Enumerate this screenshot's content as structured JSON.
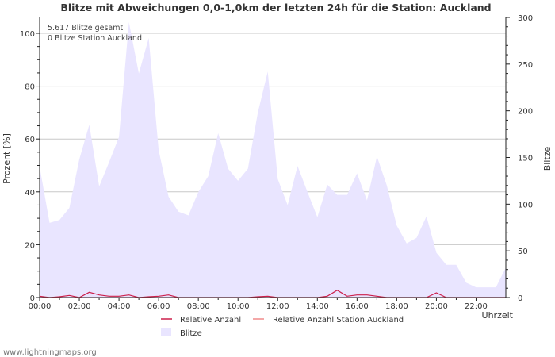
{
  "chart_data": {
    "type": "area",
    "title": "Blitze mit Abweichungen 0,0-1,0km der letzten 24h für die Station: Auckland",
    "xlabel": "Uhrzeit",
    "ylabel_left": "Prozent   [%]",
    "ylabel_right": "Blitze",
    "ylim_left": [
      0,
      106
    ],
    "ylim_right": [
      0,
      300
    ],
    "x_range_hours": [
      0,
      23.5
    ],
    "x_ticks": [
      "00:00",
      "02:00",
      "04:00",
      "06:00",
      "08:00",
      "10:00",
      "12:00",
      "14:00",
      "16:00",
      "18:00",
      "20:00",
      "22:00"
    ],
    "y_ticks_left": [
      "0",
      "20",
      "40",
      "60",
      "80",
      "100"
    ],
    "y_ticks_right": [
      "0",
      "50",
      "100",
      "150",
      "200",
      "250",
      "300"
    ],
    "annotation": [
      "5.617 Blitze gesamt",
      "0 Blitze Station Auckland"
    ],
    "legend": {
      "relative": "Relative Anzahl",
      "station": "Relative Anzahl Station Auckland",
      "blitze": "Blitze"
    },
    "series": [
      {
        "name": "Blitze",
        "axis": "right",
        "x": [
          0,
          0.5,
          1,
          1.5,
          2,
          2.5,
          3,
          3.5,
          4,
          4.5,
          5,
          5.5,
          6,
          6.5,
          7,
          7.5,
          8,
          8.5,
          9,
          9.5,
          10,
          10.5,
          11,
          11.5,
          12,
          12.5,
          13,
          13.5,
          14,
          14.5,
          15,
          15.5,
          16,
          16.5,
          17,
          17.5,
          18,
          18.5,
          19,
          19.5,
          20,
          20.5,
          21,
          21.5,
          22,
          22.5,
          23,
          23.5
        ],
        "values": [
          140,
          80,
          83,
          96,
          148,
          185,
          119,
          145,
          172,
          295,
          240,
          278,
          158,
          108,
          92,
          88,
          113,
          130,
          176,
          138,
          125,
          138,
          198,
          242,
          127,
          99,
          141,
          113,
          86,
          121,
          110,
          110,
          133,
          104,
          151,
          120,
          77,
          58,
          64,
          87,
          48,
          35,
          35,
          16,
          11,
          11,
          11,
          32
        ]
      },
      {
        "name": "Relative Anzahl",
        "axis": "left",
        "x": [
          0,
          0.5,
          1,
          1.5,
          2,
          2.5,
          3,
          3.5,
          4,
          4.5,
          5,
          5.5,
          6,
          6.5,
          7,
          7.5,
          8,
          8.5,
          9,
          9.5,
          10,
          10.5,
          11,
          11.5,
          12,
          12.5,
          13,
          13.5,
          14,
          14.5,
          15,
          15.5,
          16,
          16.5,
          17,
          17.5,
          18,
          18.5,
          19,
          19.5,
          20,
          20.5,
          21,
          21.5,
          22,
          22.5,
          23,
          23.5
        ],
        "values": [
          0.5,
          0,
          0.3,
          0.8,
          0,
          2,
          1,
          0.5,
          0.5,
          1,
          0,
          0.3,
          0.5,
          1,
          0,
          0,
          0,
          0,
          0,
          0,
          0,
          0,
          0.3,
          0.5,
          0,
          0,
          0,
          0,
          0,
          0.5,
          2.8,
          0.5,
          1,
          1,
          0.5,
          0,
          0,
          0,
          0,
          0,
          1.8,
          0,
          0,
          0,
          0,
          0,
          0,
          0
        ]
      },
      {
        "name": "Relative Anzahl Station Auckland",
        "axis": "left",
        "x": [
          0,
          0.5,
          1,
          1.5,
          2,
          2.5,
          3,
          3.5,
          4,
          4.5,
          5,
          5.5,
          6,
          6.5,
          7,
          7.5,
          8,
          8.5,
          9,
          9.5,
          10,
          10.5,
          11,
          11.5,
          12,
          12.5,
          13,
          13.5,
          14,
          14.5,
          15,
          15.5,
          16,
          16.5,
          17,
          17.5,
          18,
          18.5,
          19,
          19.5,
          20,
          20.5,
          21,
          21.5,
          22,
          22.5,
          23,
          23.5
        ],
        "values": [
          0,
          0,
          0,
          0,
          0,
          0,
          0,
          0,
          0,
          0,
          0,
          0,
          0,
          0,
          0,
          0,
          0,
          0,
          0,
          0,
          0,
          0,
          0,
          0,
          0,
          0,
          0,
          0,
          0,
          0,
          0,
          0,
          0,
          0,
          0,
          0,
          0,
          0,
          0,
          0,
          0,
          0,
          0,
          0,
          0,
          0,
          0,
          0
        ]
      }
    ]
  },
  "colors": {
    "area_fill": "#e9e5ff",
    "relative_line": "#cc1f4b",
    "station_line": "#f08a8a",
    "grid": "#c8c8c8",
    "axis": "#222222",
    "text": "#333333",
    "footer": "#777777"
  },
  "footer": "www.lightningmaps.org"
}
